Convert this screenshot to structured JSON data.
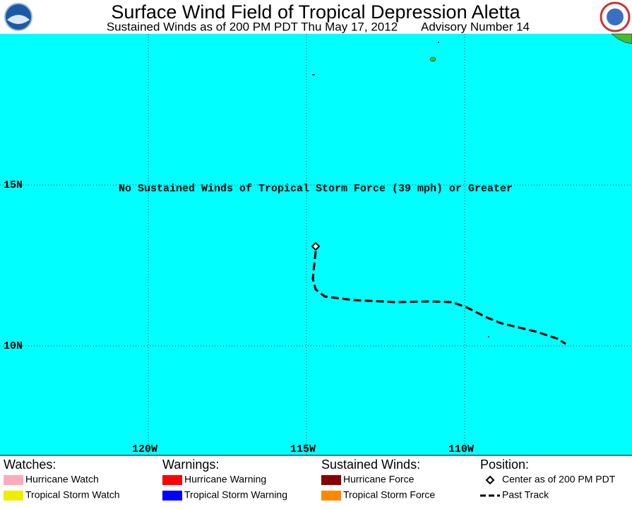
{
  "header": {
    "title": "Surface Wind Field of Tropical Depression Aletta",
    "subtitle": "Sustained Winds as of 200 PM PDT Thu May 17, 2012",
    "advisory": "Advisory Number 14"
  },
  "map": {
    "message": "No Sustained Winds of Tropical Storm Force (39 mph) or Greater",
    "lat_labels": [
      "15N",
      "10N"
    ],
    "lon_labels": [
      "120W",
      "115W",
      "110W"
    ]
  },
  "legend": [
    {
      "title": "Watches:",
      "items": [
        "Hurricane Watch",
        "Tropical Storm Watch"
      ]
    },
    {
      "title": "Warnings:",
      "items": [
        "Hurricane Warning",
        "Tropical Storm Warning"
      ]
    },
    {
      "title": "Sustained Winds:",
      "items": [
        "Hurricane Force",
        "Tropical Storm Force"
      ]
    },
    {
      "title": "Position:",
      "items": [
        "Center as of 200 PM PDT",
        "Past Track"
      ]
    }
  ]
}
